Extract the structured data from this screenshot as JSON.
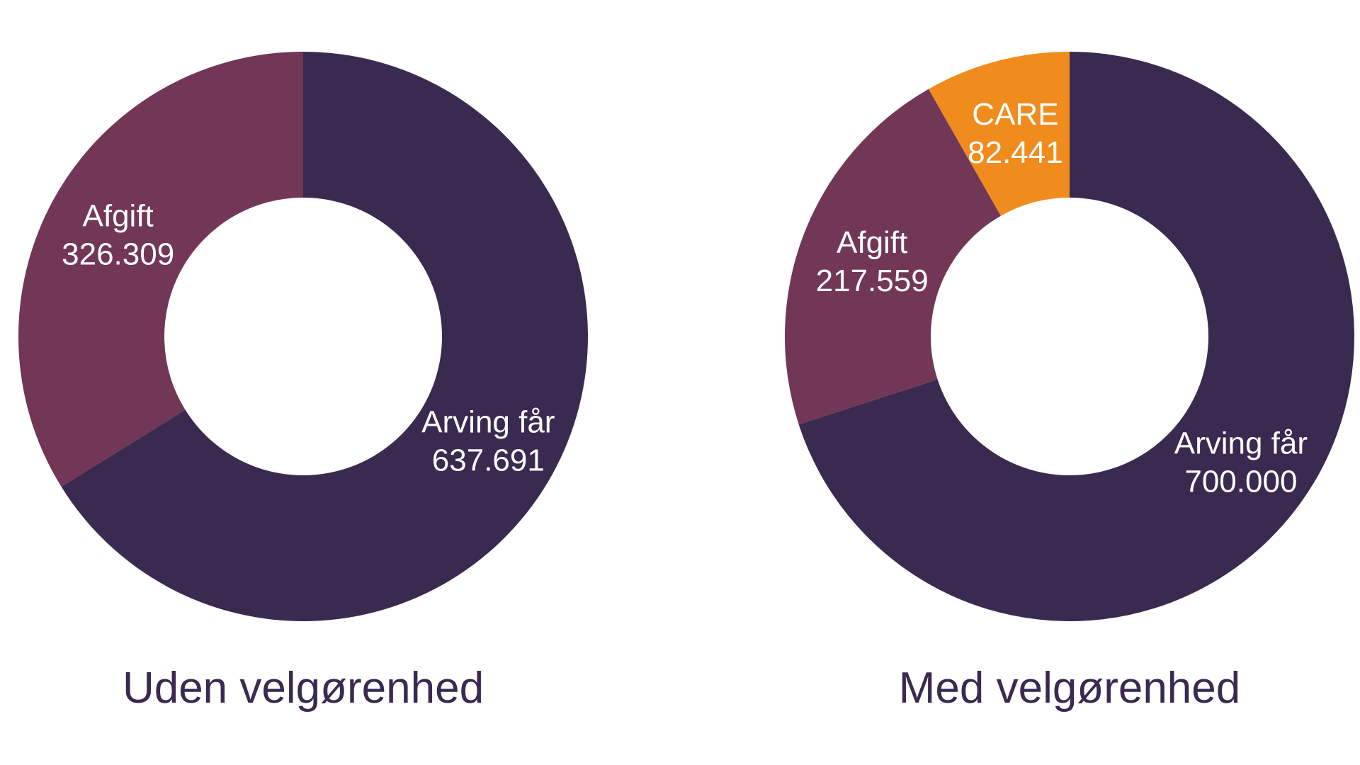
{
  "chart_data": [
    {
      "type": "pie",
      "title": "Uden velgørenhed",
      "donut": true,
      "slices": [
        {
          "label": "Arving får",
          "value": 637691,
          "value_text": "637.691",
          "color": "#3a2a50"
        },
        {
          "label": "Afgift",
          "value": 326309,
          "value_text": "326.309",
          "color": "#723656"
        }
      ]
    },
    {
      "type": "pie",
      "title": "Med velgørenhed",
      "donut": true,
      "slices": [
        {
          "label": "Arving får",
          "value": 700000,
          "value_text": "700.000",
          "color": "#3a2a50"
        },
        {
          "label": "Afgift",
          "value": 217559,
          "value_text": "217.559",
          "color": "#723656"
        },
        {
          "label": "CARE",
          "value": 82441,
          "value_text": "82.441",
          "color": "#f08c1e"
        }
      ]
    }
  ]
}
